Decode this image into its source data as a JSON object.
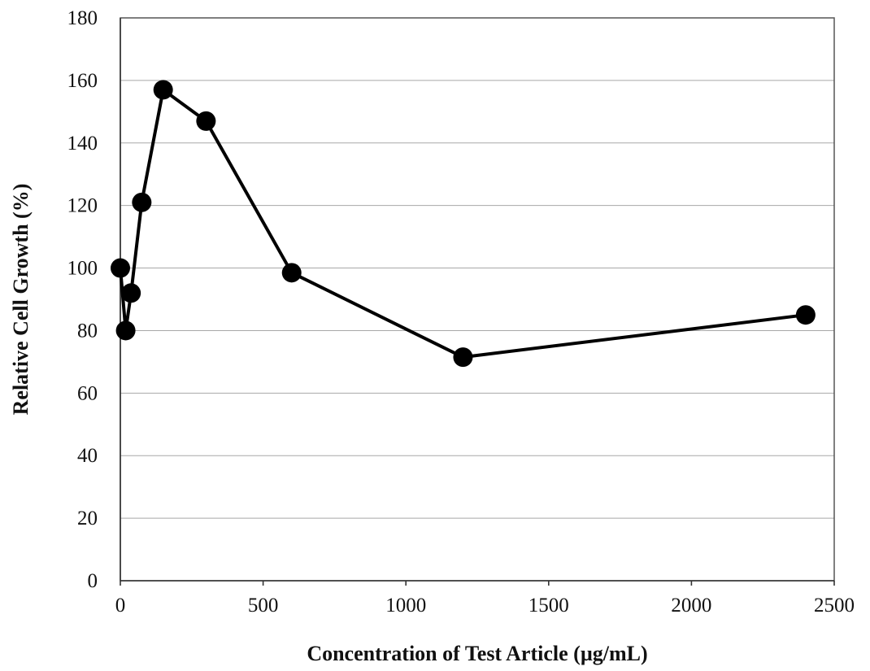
{
  "chart_data": {
    "type": "line",
    "title": "",
    "xlabel": "Concentration of Test Article (µg/mL)",
    "ylabel": "Relative Cell Growth (%)",
    "xlim": [
      0,
      2500
    ],
    "ylim": [
      0,
      180
    ],
    "x_ticks": [
      0,
      500,
      1000,
      1500,
      2000,
      2500
    ],
    "y_ticks": [
      0,
      20,
      40,
      60,
      80,
      100,
      120,
      140,
      160,
      180
    ],
    "x_tick_labels": [
      "0",
      "500",
      "1000",
      "1500",
      "2000",
      "2500"
    ],
    "y_tick_labels": [
      "0",
      "20",
      "40",
      "60",
      "80",
      "100",
      "120",
      "140",
      "160",
      "180"
    ],
    "grid": true,
    "legend": false,
    "series": [
      {
        "x": [
          0,
          18.75,
          37.5,
          75,
          150,
          300,
          600,
          1200,
          2400
        ],
        "y": [
          100,
          80,
          92,
          121,
          157,
          147,
          98.5,
          71.5,
          85
        ],
        "color": "#000000",
        "marker": "circle"
      }
    ]
  }
}
